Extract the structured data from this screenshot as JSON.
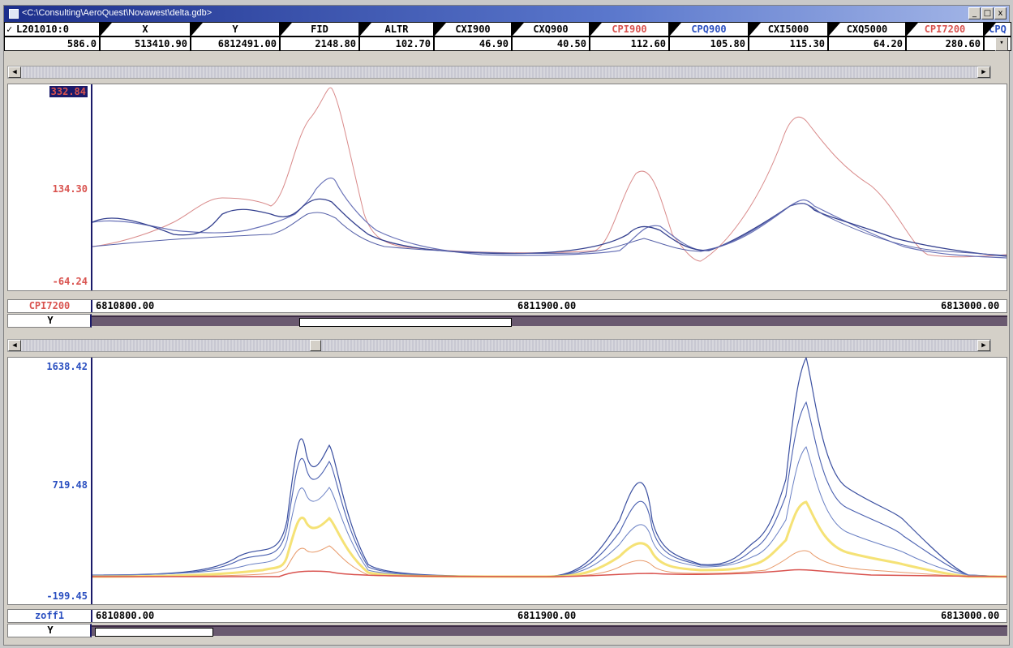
{
  "window": {
    "title": "<C:\\Consulting\\AeroQuest\\Novawest\\delta.gdb>",
    "min_label": "_",
    "max_label": "□",
    "close_label": "x"
  },
  "header": [
    {
      "label": "L201010:0",
      "value": "586.0",
      "color": "#000000"
    },
    {
      "label": "X",
      "value": "513410.90",
      "color": "#000000"
    },
    {
      "label": "Y",
      "value": "6812491.00",
      "color": "#000000"
    },
    {
      "label": "FID",
      "value": "2148.80",
      "color": "#000000"
    },
    {
      "label": "ALTR",
      "value": "102.70",
      "color": "#000000"
    },
    {
      "label": "CXI900",
      "value": "46.90",
      "color": "#000000"
    },
    {
      "label": "CXQ900",
      "value": "40.50",
      "color": "#000000"
    },
    {
      "label": "CPI900",
      "value": "112.60",
      "color": "#d9534f"
    },
    {
      "label": "CPQ900",
      "value": "105.80",
      "color": "#2a4fc0"
    },
    {
      "label": "CXI5000",
      "value": "115.30",
      "color": "#000000"
    },
    {
      "label": "CXQ5000",
      "value": "64.20",
      "color": "#000000"
    },
    {
      "label": "CPI7200",
      "value": "280.60",
      "color": "#d9534f"
    },
    {
      "label": "CPQ",
      "value": "",
      "color": "#2a4fc0"
    }
  ],
  "top_panel": {
    "y_labels": [
      "332.84",
      "134.30",
      "-64.24"
    ],
    "axis_channel": "CPI7200",
    "axis_var": "Y",
    "x_ticks": [
      "6810800.00",
      "6811900.00",
      "6813000.00"
    ]
  },
  "bottom_panel": {
    "y_labels": [
      "1638.42",
      "719.48",
      "-199.45"
    ],
    "axis_channel": "zoff1",
    "axis_var": "Y",
    "x_ticks": [
      "6810800.00",
      "6811900.00",
      "6813000.00"
    ]
  },
  "colors": {
    "accent_red": "#d9534f",
    "accent_blue": "#2a4fc0",
    "navy": "#1a1a6a"
  }
}
